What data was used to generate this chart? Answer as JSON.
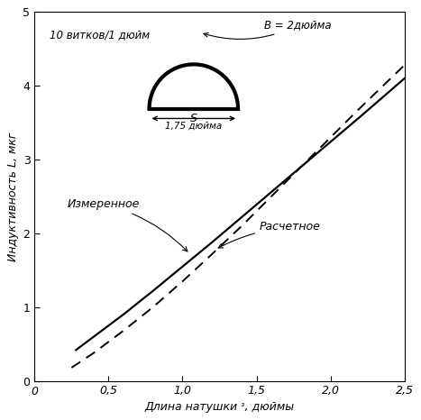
{
  "xlabel": "Длина натушки ᵌ, дюймы",
  "ylabel": "Индуктивность L, мкг",
  "xlim": [
    0,
    2.5
  ],
  "ylim": [
    0,
    5
  ],
  "xticks": [
    0,
    0.5,
    1.0,
    1.5,
    2.0,
    2.5
  ],
  "yticks": [
    0,
    1,
    2,
    3,
    4,
    5
  ],
  "xtick_labels": [
    "0",
    "0,5",
    "1,0",
    "1,5",
    "2,0",
    "2,5"
  ],
  "ytick_labels": [
    "0",
    "1",
    "2",
    "3",
    "4",
    "5"
  ],
  "annotation_turns": "10 витков/1 дюйм",
  "annotation_B": "B = 2дюйма",
  "annotation_S": "S",
  "annotation_S_val": "1,75 дюйма",
  "annotation_measured": "Измеренное",
  "annotation_calculated": "Расчетное",
  "measured_x": [
    0.28,
    0.4,
    0.6,
    0.8,
    1.0,
    1.2,
    1.4,
    1.6,
    1.8,
    2.0,
    2.2,
    2.5
  ],
  "measured_y": [
    0.42,
    0.6,
    0.9,
    1.22,
    1.55,
    1.88,
    2.22,
    2.56,
    2.9,
    3.24,
    3.58,
    4.1
  ],
  "calculated_x": [
    0.25,
    0.4,
    0.6,
    0.8,
    1.0,
    1.2,
    1.4,
    1.6,
    1.8,
    2.0,
    2.2,
    2.5
  ],
  "calculated_y": [
    0.18,
    0.38,
    0.68,
    1.0,
    1.35,
    1.72,
    2.1,
    2.5,
    2.9,
    3.3,
    3.7,
    4.28
  ],
  "line_color": "#000000",
  "bg_color": "#ffffff",
  "font_size": 9,
  "axis_font_size": 9
}
